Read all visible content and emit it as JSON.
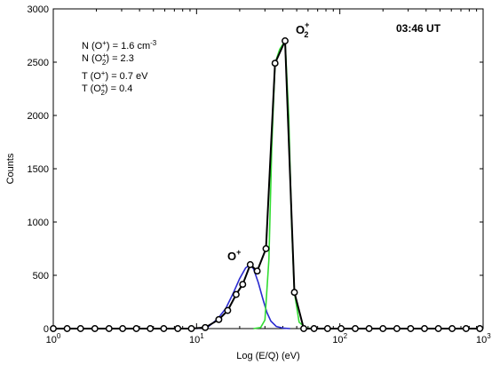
{
  "chart_data": {
    "type": "line",
    "time_label": "03:46 UT",
    "xlabel": "Log (E/Q) (eV)",
    "ylabel": "Counts",
    "x_scale": "log",
    "xlim": [
      1,
      1000
    ],
    "ylim": [
      0,
      3000
    ],
    "y_ticks": [
      "0",
      "500",
      "1000",
      "1500",
      "2000",
      "2500",
      "3000"
    ],
    "x_tick_labels": [
      {
        "base": "10",
        "exp": "0"
      },
      {
        "base": "10",
        "exp": "1"
      },
      {
        "base": "10",
        "exp": "2"
      },
      {
        "base": "10",
        "exp": "3"
      }
    ],
    "annotations": {
      "n_o_plus": {
        "pre": "N (O",
        "sup": "+",
        "post": ") = 1.6 cm",
        "unit_exp": "-3"
      },
      "n_o2_plus": {
        "pre": "N (O",
        "sub": "2",
        "sup": "+",
        "post": ") = 2.3"
      },
      "t_o_plus": {
        "pre": "T (O",
        "sup": "+",
        "post": ") = 0.7 eV"
      },
      "t_o2_plus": {
        "pre": "T (O",
        "sub": "2",
        "sup": "+",
        "post": ") = 0.4"
      },
      "peak_o_plus": {
        "base": "O",
        "sup": "+"
      },
      "peak_o2_plus": {
        "base": "O",
        "sub": "2",
        "sup": "+"
      }
    },
    "series": [
      {
        "key": "measured",
        "color": "#000000",
        "markers": true,
        "x": [
          1.0,
          1.25,
          1.55,
          1.95,
          2.45,
          3.05,
          3.8,
          4.75,
          5.9,
          7.4,
          9.2,
          11.5,
          14.3,
          16.5,
          18.9,
          21.0,
          23.7,
          26.5,
          30.5,
          35.3,
          41.5,
          48.2,
          56.0,
          66.0,
          82.0,
          102,
          128,
          160,
          200,
          250,
          312,
          390,
          487,
          608,
          760,
          949
        ],
        "y": [
          0,
          0,
          0,
          0,
          0,
          0,
          0,
          0,
          0,
          0,
          0,
          10,
          85,
          170,
          320,
          415,
          600,
          540,
          750,
          2490,
          2700,
          340,
          0,
          0,
          0,
          0,
          0,
          0,
          0,
          0,
          0,
          0,
          0,
          0,
          0,
          0
        ]
      },
      {
        "key": "fit-o-plus",
        "color": "#2a2ad0",
        "markers": false,
        "x": [
          10,
          12,
          14,
          16,
          18,
          20,
          22,
          23.7,
          25,
          27,
          29,
          31,
          33,
          36,
          40,
          45
        ],
        "y": [
          0,
          15,
          90,
          190,
          330,
          470,
          570,
          600,
          560,
          430,
          280,
          150,
          70,
          20,
          5,
          0
        ]
      },
      {
        "key": "fit-o2-plus",
        "color": "#33dd33",
        "markers": false,
        "x": [
          25,
          28,
          30,
          32,
          33.5,
          35.3,
          38,
          41.5,
          44,
          46,
          48.2,
          52,
          58,
          66
        ],
        "y": [
          0,
          10,
          80,
          650,
          1700,
          2490,
          2620,
          2700,
          2000,
          1000,
          340,
          60,
          5,
          0
        ]
      }
    ]
  }
}
